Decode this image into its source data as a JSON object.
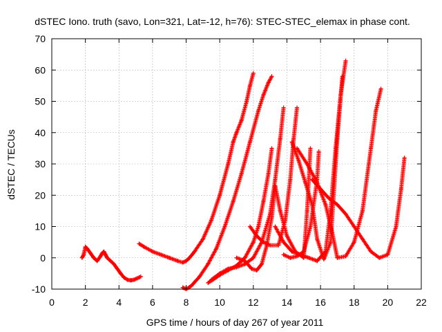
{
  "chart_data": {
    "type": "scatter",
    "title": "dSTEC Iono. truth (savo, Lon=321, Lat=-12, h=76): STEC-STEC_elemax in phase cont.",
    "xlabel": "GPS time / hours of day 267 of year 2011",
    "ylabel": "dSTEC  / TECUs",
    "xlim": [
      0,
      22
    ],
    "ylim": [
      -10,
      70
    ],
    "xticks": [
      "0",
      "2",
      "4",
      "6",
      "8",
      "10",
      "12",
      "14",
      "16",
      "18",
      "20",
      "22"
    ],
    "yticks": [
      "-10",
      "0",
      "10",
      "20",
      "30",
      "40",
      "50",
      "60",
      "70"
    ],
    "grid": true,
    "marker": "+",
    "color": "#ff0000",
    "series": [
      {
        "x": [
          1.8,
          1.9,
          2.0,
          2.1,
          2.3,
          2.5,
          2.7,
          2.9,
          3.0,
          3.1,
          3.2,
          3.3,
          3.5,
          3.7,
          3.9,
          4.1,
          4.3,
          4.5,
          4.7,
          4.9,
          5.1,
          5.3
        ],
        "y": [
          0,
          1,
          3.5,
          3,
          1.5,
          0,
          -1,
          0.5,
          1.5,
          2,
          1,
          0,
          -1,
          -2,
          -3.5,
          -5,
          -6.3,
          -7,
          -7.2,
          -7,
          -6.5,
          -6
        ]
      },
      {
        "x": [
          5.2,
          5.5,
          6.0,
          6.5,
          7.0,
          7.5,
          7.8,
          8.0,
          8.2,
          8.5,
          9.0,
          9.5,
          10.0,
          10.5,
          10.8,
          11.0,
          11.3,
          11.6,
          11.8,
          12.0
        ],
        "y": [
          4.5,
          3.5,
          2,
          1,
          0,
          -1,
          -1.5,
          -1,
          0,
          2,
          6,
          12,
          20,
          30,
          37,
          40,
          44,
          50,
          55,
          59
        ]
      },
      {
        "x": [
          7.8,
          8.0,
          8.3,
          8.8,
          9.3,
          9.8,
          10.3,
          10.8,
          11.3,
          11.8,
          12.3,
          12.6,
          12.9,
          13.1
        ],
        "y": [
          -9.5,
          -10,
          -9,
          -6,
          -2,
          3,
          10,
          18,
          27,
          37,
          47,
          52,
          56,
          58
        ]
      },
      {
        "x": [
          9.3,
          9.6,
          10.0,
          10.5,
          11.0,
          11.5,
          12.0,
          12.3,
          12.6,
          12.9,
          13.1
        ],
        "y": [
          -8,
          -7,
          -5.5,
          -4,
          -2.5,
          0,
          5,
          10,
          18,
          27,
          35
        ]
      },
      {
        "x": [
          9.5,
          10.0,
          10.5,
          11.0,
          11.5,
          12.0,
          12.5,
          13.0,
          13.3,
          13.6,
          13.8
        ],
        "y": [
          -7,
          -5,
          -3.5,
          -3,
          -2,
          0,
          5,
          14,
          25,
          38,
          48
        ]
      },
      {
        "x": [
          11.8,
          12.2,
          12.6,
          13.0,
          13.5,
          13.9,
          14.2,
          14.4,
          14.6
        ],
        "y": [
          10,
          7,
          5,
          4,
          4,
          12,
          25,
          38,
          48
        ]
      },
      {
        "x": [
          11.0,
          11.5,
          11.9,
          12.2,
          12.5,
          12.8,
          13.1,
          13.3
        ],
        "y": [
          0,
          -1,
          -3.5,
          -4,
          -2,
          4,
          13,
          23
        ]
      },
      {
        "x": [
          13.3,
          13.6,
          14.0,
          14.5,
          15.0,
          15.2,
          15.4
        ],
        "y": [
          23,
          15,
          7,
          2,
          0,
          15,
          35
        ]
      },
      {
        "x": [
          13.8,
          14.2,
          14.6,
          15.0,
          15.4,
          15.8,
          15.9
        ],
        "y": [
          1,
          0,
          0.5,
          2,
          10,
          25,
          34
        ]
      },
      {
        "x": [
          13.3,
          13.8,
          14.3,
          14.8,
          15.3,
          15.8,
          16.3,
          16.6,
          16.9,
          17.2,
          17.5
        ],
        "y": [
          10,
          5,
          2,
          1,
          0,
          -1,
          2,
          15,
          35,
          52,
          63
        ]
      },
      {
        "x": [
          14.3,
          14.7,
          15.1,
          15.5,
          15.8,
          16.2,
          16.6,
          17.0,
          17.3
        ],
        "y": [
          37,
          31,
          24,
          17,
          6,
          -0.5,
          5,
          38,
          58
        ]
      },
      {
        "x": [
          14.6,
          15.2,
          15.8,
          16.3,
          16.7,
          17.0,
          17.5,
          18.0,
          18.5,
          19.0,
          19.3,
          19.6
        ],
        "y": [
          35,
          30,
          24,
          17,
          8,
          0,
          0.5,
          5,
          15,
          35,
          47,
          54
        ]
      },
      {
        "x": [
          15.5,
          16.0,
          16.5,
          17.0,
          17.5,
          18.0,
          18.5,
          19.0,
          19.5,
          20.0,
          20.5,
          20.8,
          21.0
        ],
        "y": [
          25,
          22,
          19,
          17,
          14,
          10,
          6,
          2,
          0,
          1,
          10,
          22,
          32
        ]
      }
    ]
  }
}
